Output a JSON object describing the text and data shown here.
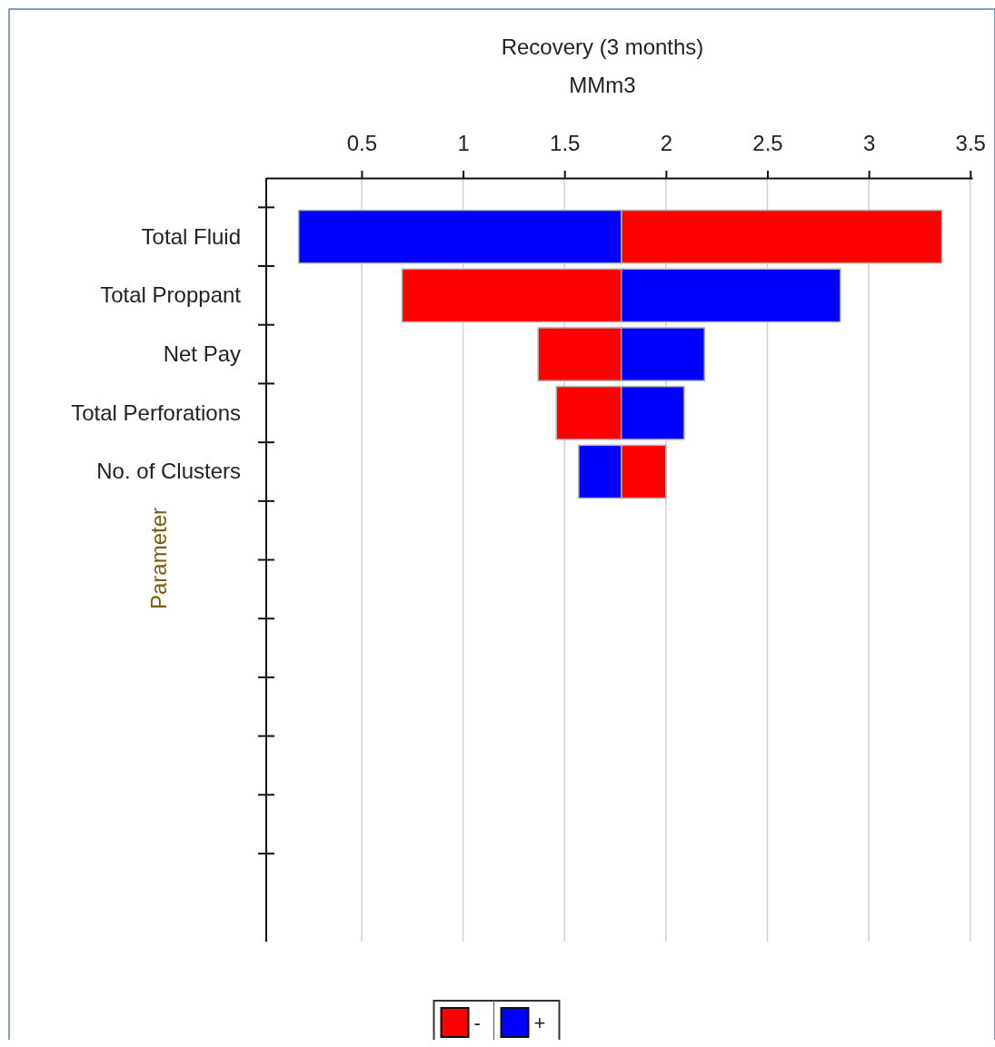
{
  "chart_data": {
    "type": "bar",
    "orientation": "horizontal",
    "title": "Recovery (3 months)",
    "xlabel": "MMm3",
    "ylabel": "Parameter",
    "categories": [
      "Total Fluid",
      "Total Proppant",
      "Net Pay",
      "Total Perforations",
      "No. of Clusters",
      null,
      null,
      null,
      null,
      null,
      null,
      null
    ],
    "series": [
      {
        "name": "-",
        "color": "#ff0000",
        "base": [
          1.78,
          0.7,
          1.37,
          1.46,
          1.78,
          null,
          null,
          null,
          null,
          null,
          null,
          null
        ],
        "values": [
          1.58,
          1.08,
          0.41,
          0.32,
          0.22,
          null,
          null,
          null,
          null,
          null,
          null,
          null
        ]
      },
      {
        "name": "+",
        "color": "#0000ff",
        "base": [
          0.19,
          1.78,
          1.78,
          1.78,
          1.57,
          null,
          null,
          null,
          null,
          null,
          null,
          null
        ],
        "values": [
          1.59,
          1.08,
          0.41,
          0.31,
          0.21,
          null,
          null,
          null,
          null,
          null,
          null,
          null
        ]
      }
    ],
    "xlim": [
      0.03,
      3.51
    ],
    "xticks": [
      0.5,
      1,
      1.5,
      2,
      2.5,
      3,
      3.5
    ],
    "grid": "x",
    "legend": "bottom"
  }
}
